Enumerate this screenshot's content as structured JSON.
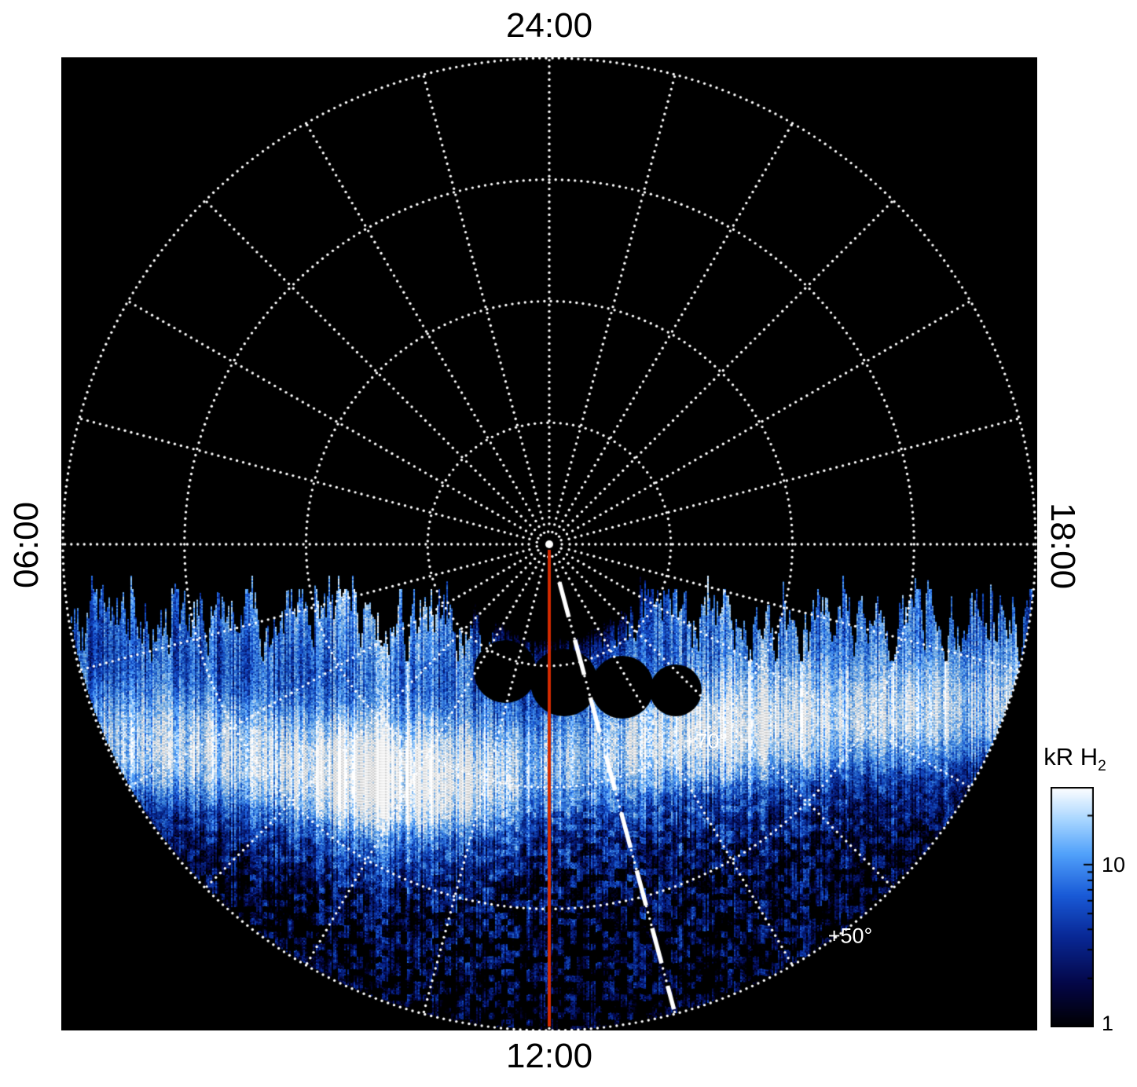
{
  "page": {
    "background": "#ffffff"
  },
  "plot": {
    "background": "#000000",
    "grid_color": "#ffffff",
    "time_labels": {
      "top": "24:00",
      "left": "06:00",
      "bottom": "12:00",
      "right": "18:00"
    },
    "latitude_labels": {
      "inner": "+70°",
      "outer": "+50°"
    }
  },
  "colorbar": {
    "title_main": "kR H",
    "title_sub": "2",
    "tick_labels": {
      "upper": "10",
      "lower": "1"
    }
  },
  "chart_data": {
    "type": "heatmap",
    "projection": "polar",
    "quantity": "H2 auroral emission brightness",
    "units": "kR",
    "angular_axis": {
      "coordinate": "local time",
      "direction_labels": [
        {
          "time": "24:00",
          "position": "top"
        },
        {
          "time": "06:00",
          "position": "left"
        },
        {
          "time": "12:00",
          "position": "bottom"
        },
        {
          "time": "18:00",
          "position": "right"
        }
      ],
      "grid_step_hours": 1
    },
    "radial_axis": {
      "coordinate": "latitude",
      "pole_deg": 90,
      "outer_edge_deg": 50,
      "grid_circles_deg": [
        80,
        70,
        60,
        50
      ],
      "labeled_circles": [
        "+70°",
        "+50°"
      ]
    },
    "color_scale": {
      "type": "log",
      "min": 1,
      "max": 30,
      "ticks": [
        1,
        10
      ],
      "minor_ticks": [
        2,
        3,
        4,
        5,
        6,
        7,
        8,
        9,
        20
      ],
      "label": "kR H2",
      "stops": [
        [
          0.0,
          0,
          0,
          0
        ],
        [
          0.18,
          4,
          6,
          70
        ],
        [
          0.38,
          8,
          40,
          150
        ],
        [
          0.55,
          25,
          90,
          215
        ],
        [
          0.72,
          80,
          160,
          250
        ],
        [
          0.86,
          165,
          212,
          255
        ],
        [
          1.0,
          255,
          255,
          255
        ]
      ]
    },
    "features": {
      "emission_extent": "dayside only (~06:00-18:00), ragged vertically-streaked terminator boundary, nightside black",
      "main_emission": {
        "type": "auroral band",
        "latitude_range_deg": [
          65,
          75
        ],
        "local_time_extent": [
          "06:30",
          "17:30"
        ],
        "peaks": [
          {
            "local_time": "10:00",
            "brightness_kR": 30
          },
          {
            "local_time": "14:30",
            "brightness_kR": 18
          }
        ]
      },
      "diffuse_emission": {
        "latitude_range_deg": [
          50,
          62
        ],
        "brightness_kR": [
          1,
          4
        ]
      },
      "dark_gap": {
        "latitude_range_deg": [
          62,
          64
        ]
      },
      "noon_meridian": {
        "local_time": 12,
        "style": "solid",
        "color": "#d42a00"
      },
      "dashed_meridian": {
        "local_time": 13,
        "style": "dashed",
        "color": "#ffffff"
      }
    }
  }
}
